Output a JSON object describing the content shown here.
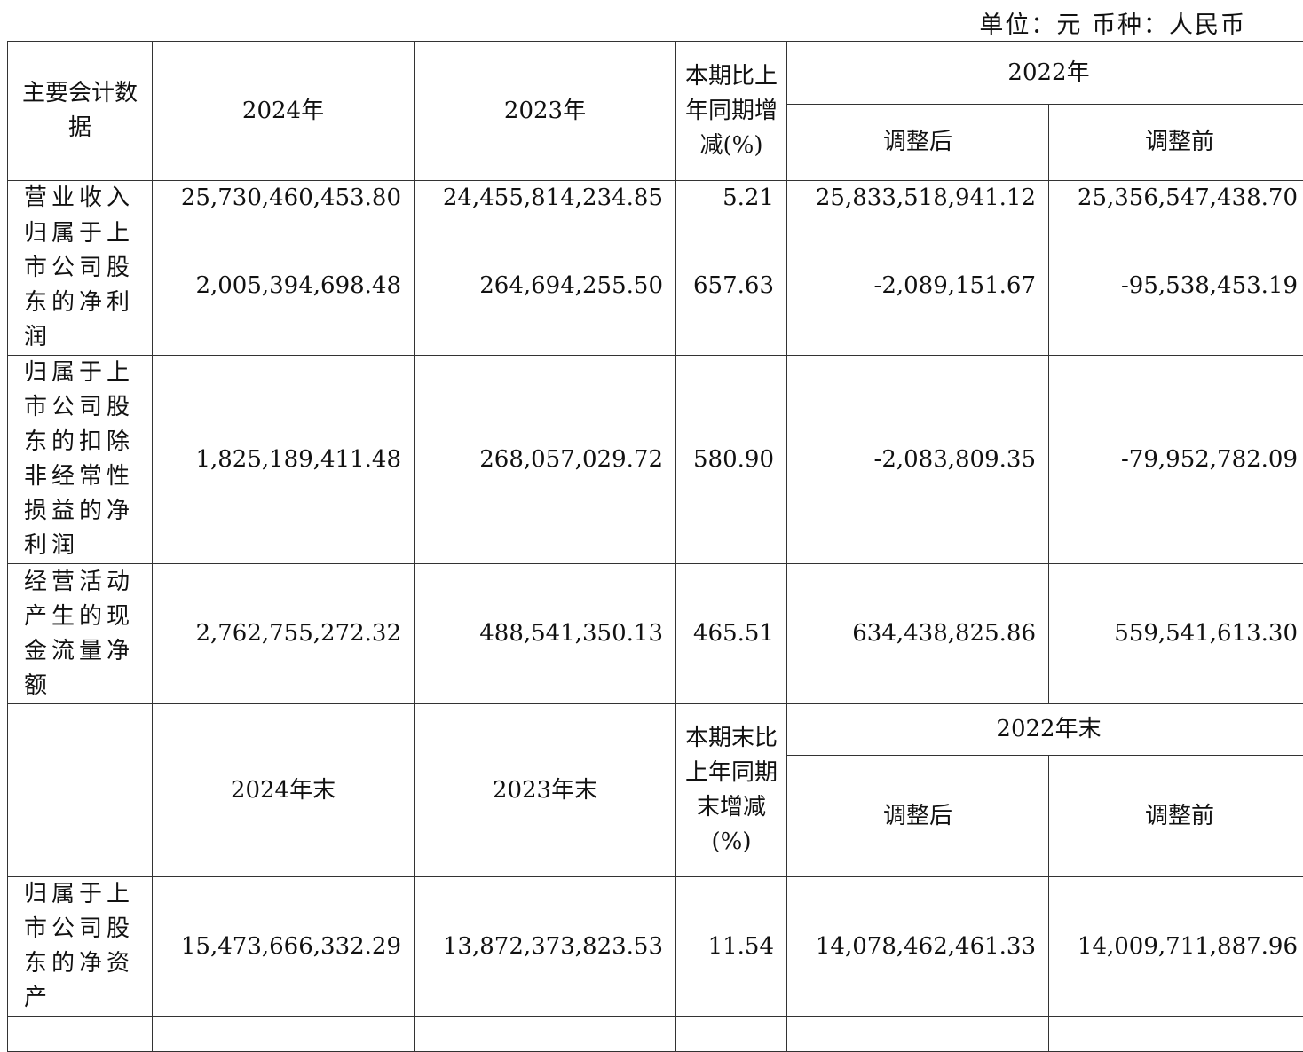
{
  "unit_note": "单位：元  币种：人民币",
  "header1": {
    "col0": "主要会计数据",
    "col1": "2024年",
    "col2": "2023年",
    "col3": "本期比上年同期增减(%)",
    "group": "2022年",
    "col4": "调整后",
    "col5": "调整前"
  },
  "rows1": [
    {
      "label": "营业收入",
      "v2024": "25,730,460,453.80",
      "v2023": "24,455,814,234.85",
      "change": "5.21",
      "adj": "25,833,518,941.12",
      "pre": "25,356,547,438.70"
    },
    {
      "label": "归属于上市公司股东的净利润",
      "v2024": "2,005,394,698.48",
      "v2023": "264,694,255.50",
      "change": "657.63",
      "adj": "-2,089,151.67",
      "pre": "-95,538,453.19"
    },
    {
      "label": "归属于上市公司股东的扣除非经常性损益的净利润",
      "v2024": "1,825,189,411.48",
      "v2023": "268,057,029.72",
      "change": "580.90",
      "adj": "-2,083,809.35",
      "pre": "-79,952,782.09"
    },
    {
      "label": "经营活动产生的现金流量净额",
      "v2024": "2,762,755,272.32",
      "v2023": "488,541,350.13",
      "change": "465.51",
      "adj": "634,438,825.86",
      "pre": "559,541,613.30"
    }
  ],
  "header2": {
    "col0": "",
    "col1": "2024年末",
    "col2": "2023年末",
    "col3": "本期末比上年同期末增减(%)",
    "group": "2022年末",
    "col4": "调整后",
    "col5": "调整前"
  },
  "rows2": [
    {
      "label": "归属于上市公司股东的净资产",
      "v2024": "15,473,666,332.29",
      "v2023": "13,872,373,823.53",
      "change": "11.54",
      "adj": "14,078,462,461.33",
      "pre": "14,009,711,887.96"
    }
  ]
}
